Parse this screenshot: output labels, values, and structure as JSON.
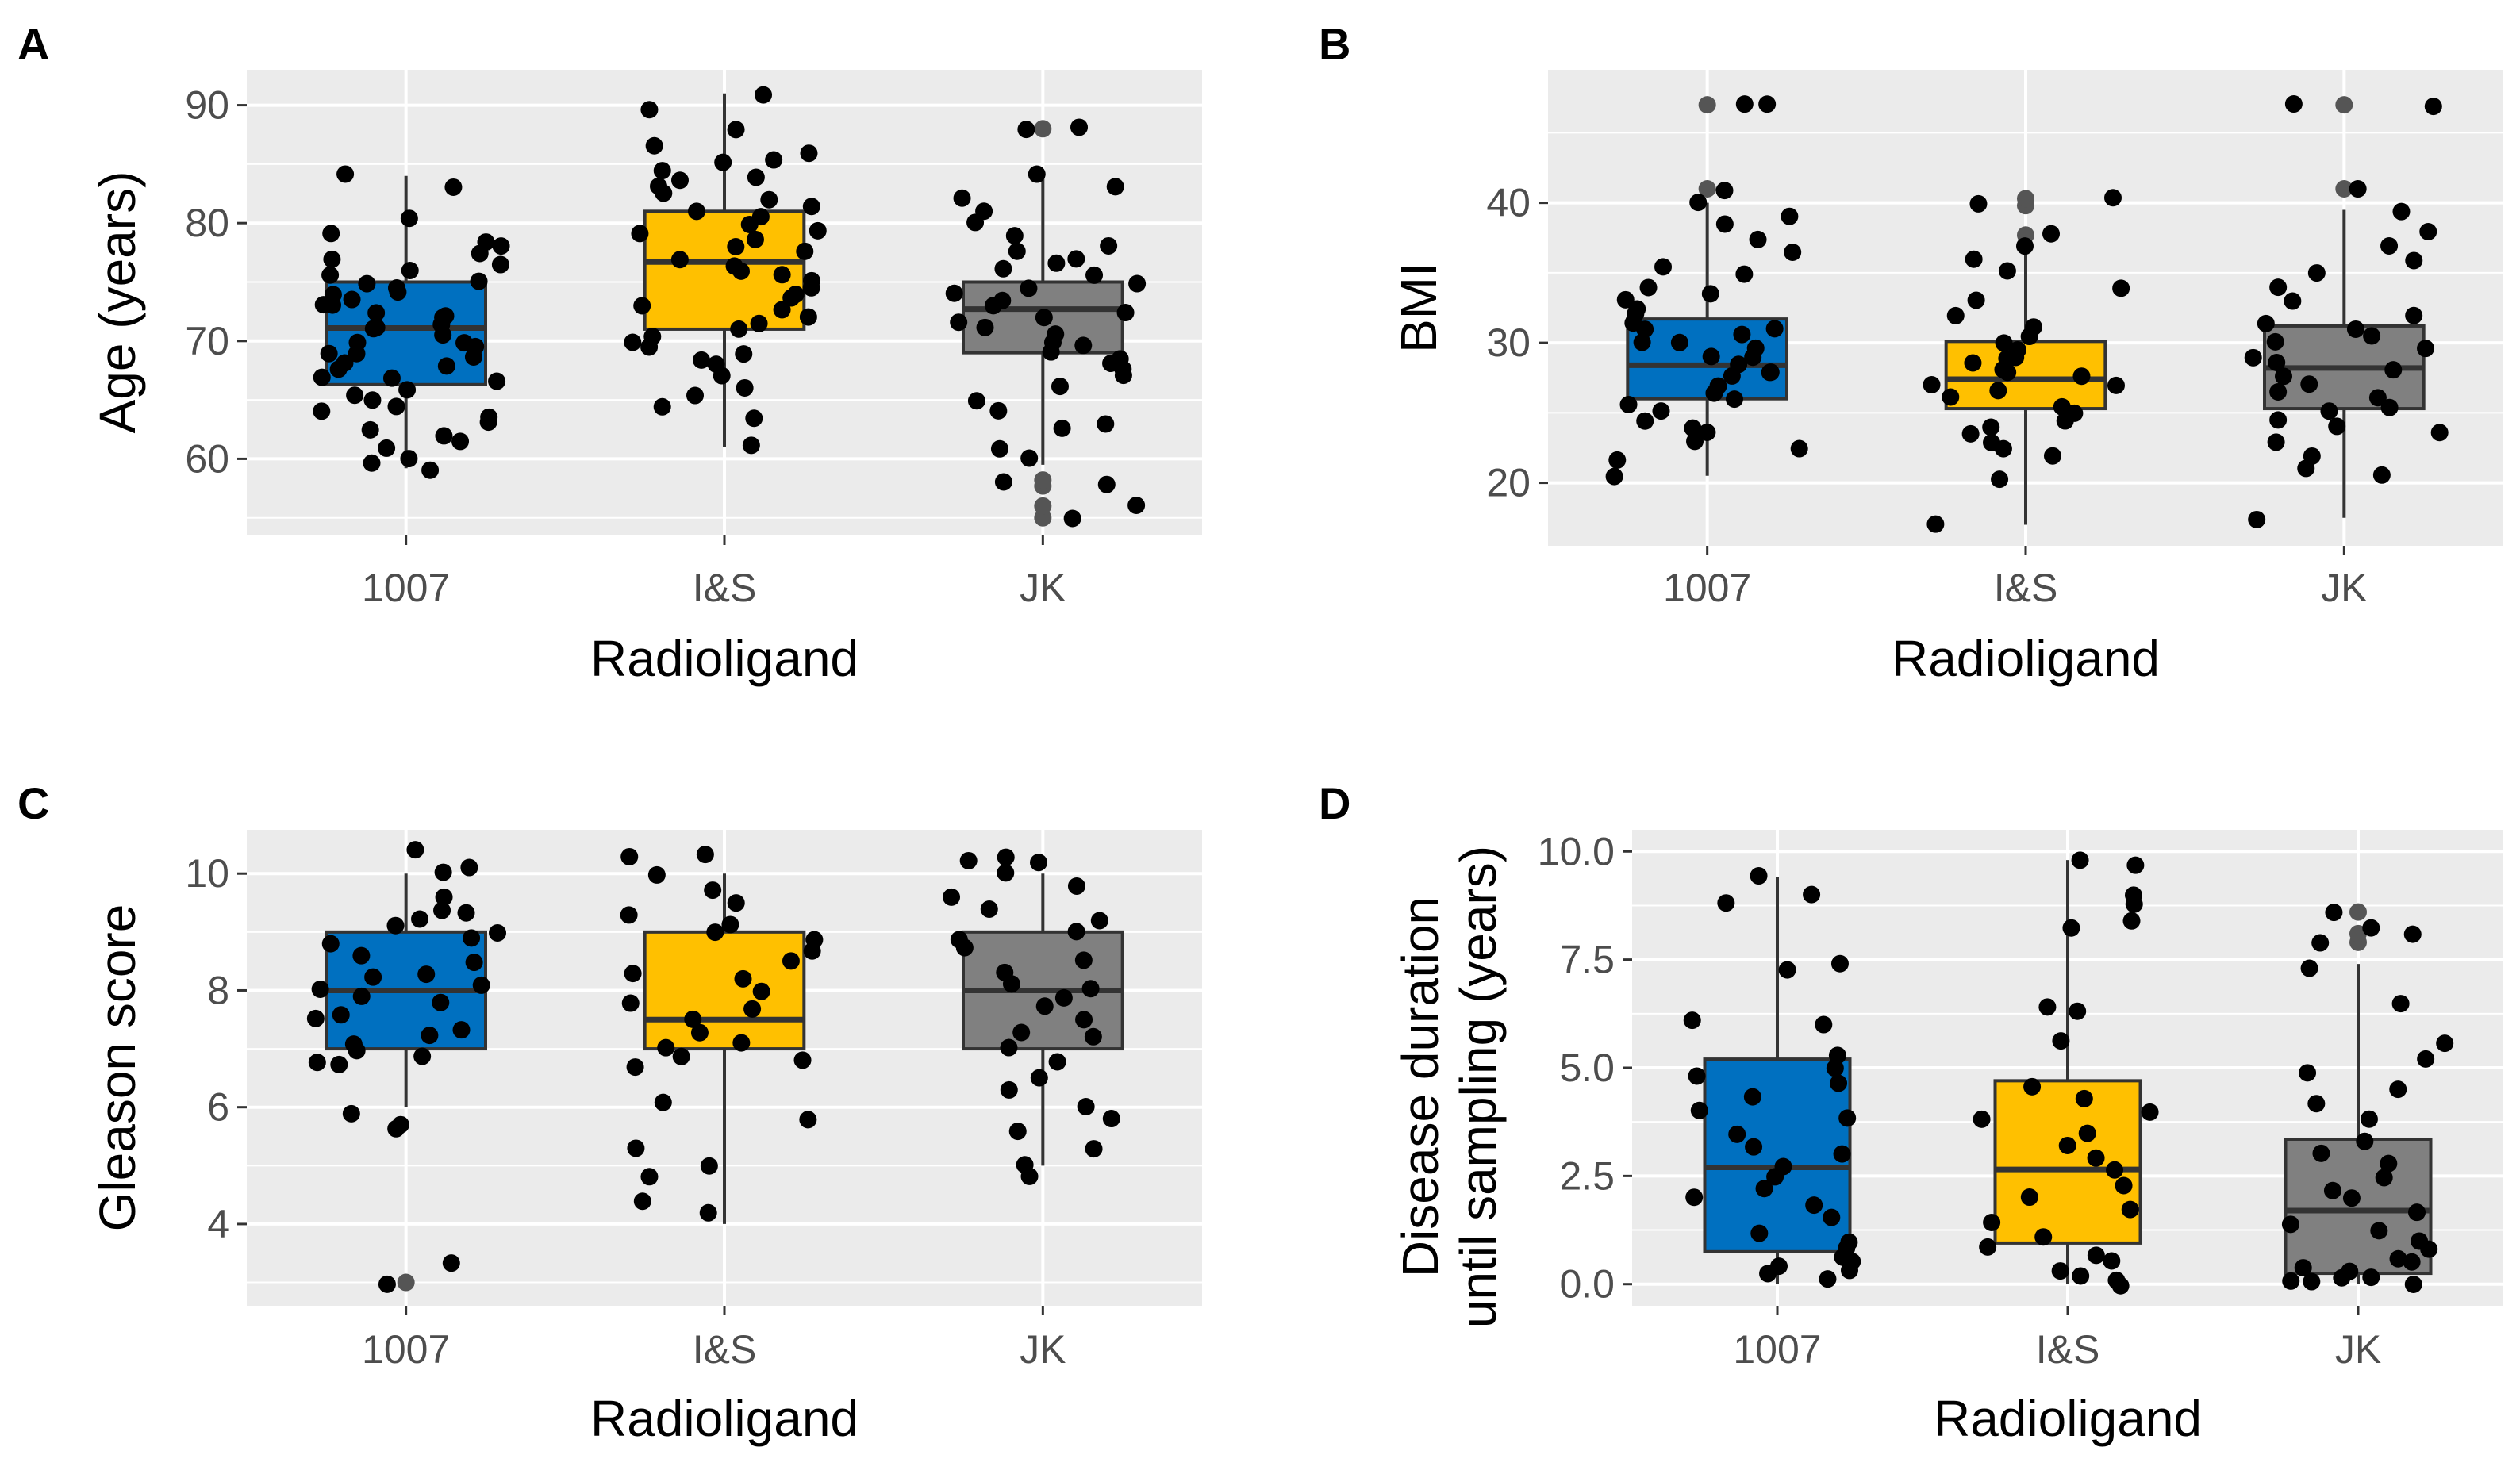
{
  "colors": {
    "panel_bg": "#ebebeb",
    "grid_major": "#ffffff",
    "group_1007": "#0070c0",
    "group_IS": "#ffc000",
    "group_JK": "#808080",
    "box_line": "#333333",
    "point": "#000000"
  },
  "chart_data": [
    {
      "panel": "A",
      "type": "boxplot",
      "xlabel": "Radioligand",
      "ylabel": "Age (years)",
      "categories": [
        "1007",
        "I&S",
        "JK"
      ],
      "ylim": [
        53.5,
        93
      ],
      "yticks": [
        60,
        70,
        80,
        90
      ],
      "ytick_labels": [
        "60",
        "70",
        "80",
        "90"
      ],
      "boxes": [
        {
          "group": "1007",
          "q1": 66.3,
          "median": 71.1,
          "q3": 75.0,
          "whisker_low": 59.2,
          "whisker_high": 84.0
        },
        {
          "group": "I&S",
          "q1": 71.0,
          "median": 76.7,
          "q3": 81.0,
          "whisker_low": 61.0,
          "whisker_high": 91.0
        },
        {
          "group": "JK",
          "q1": 69.0,
          "median": 72.7,
          "q3": 75.0,
          "whisker_low": 59.5,
          "whisker_high": 84.0
        }
      ],
      "outliers": [
        {
          "group": "JK",
          "values": [
            55.0,
            56.0,
            57.7,
            58.2,
            88.0
          ]
        }
      ],
      "points": [
        {
          "group": "1007",
          "values": [
            59,
            59.5,
            60,
            61,
            61.5,
            62,
            62.5,
            63,
            63.5,
            64,
            64.5,
            65,
            65.5,
            66,
            66.5,
            67,
            67,
            67.5,
            68,
            68,
            68.5,
            69,
            69,
            69.5,
            70,
            70,
            70.5,
            71,
            71,
            71.5,
            72,
            72,
            72.5,
            73,
            73,
            73.5,
            74,
            74,
            74.5,
            75,
            75,
            75.5,
            76,
            76.5,
            77,
            77.5,
            78,
            78.5,
            79,
            80.5,
            83,
            84
          ]
        },
        {
          "group": "I&S",
          "values": [
            61,
            63.5,
            64.5,
            65.5,
            66,
            67,
            68,
            68.5,
            69,
            69.5,
            70,
            70.5,
            71,
            71.5,
            72,
            72.5,
            73,
            73.5,
            74,
            74.5,
            75,
            75.5,
            76,
            76.5,
            77,
            77.5,
            78,
            78.5,
            79,
            79.5,
            80,
            80.5,
            81,
            81.5,
            82,
            82.5,
            83,
            83.5,
            84,
            84.5,
            85,
            85.5,
            86,
            86.5,
            88,
            89.5,
            91
          ]
        },
        {
          "group": "JK",
          "values": [
            55,
            56,
            57.7,
            58.2,
            60,
            61,
            62.5,
            63,
            64,
            65,
            66,
            67,
            67.5,
            68,
            68.5,
            69,
            69.5,
            70,
            70.5,
            71,
            71.5,
            72,
            72.5,
            73,
            73.5,
            74,
            74.5,
            75,
            75.5,
            76,
            76.5,
            77,
            77.5,
            78,
            79,
            80,
            81,
            82,
            83,
            84,
            88,
            88
          ]
        }
      ]
    },
    {
      "panel": "B",
      "type": "boxplot",
      "xlabel": "Radioligand",
      "ylabel": "BMI",
      "categories": [
        "1007",
        "I&S",
        "JK"
      ],
      "ylim": [
        15.5,
        49.5
      ],
      "yticks": [
        20,
        30,
        40
      ],
      "ytick_labels": [
        "20",
        "30",
        "40"
      ],
      "boxes": [
        {
          "group": "1007",
          "q1": 26.0,
          "median": 28.4,
          "q3": 31.7,
          "whisker_low": 20.5,
          "whisker_high": 40.0
        },
        {
          "group": "I&S",
          "q1": 25.3,
          "median": 27.4,
          "q3": 30.1,
          "whisker_low": 17.0,
          "whisker_high": 37.0
        },
        {
          "group": "JK",
          "q1": 25.3,
          "median": 28.2,
          "q3": 31.2,
          "whisker_low": 17.5,
          "whisker_high": 39.5
        }
      ],
      "outliers": [
        {
          "group": "1007",
          "values": [
            41.0,
            47.0
          ]
        },
        {
          "group": "I&S",
          "values": [
            37.7,
            39.8,
            40.3
          ]
        },
        {
          "group": "JK",
          "values": [
            41.0,
            47.0
          ]
        }
      ],
      "points": [
        {
          "group": "1007",
          "values": [
            20.5,
            21.5,
            22.5,
            23,
            23.5,
            24,
            24.5,
            25,
            25.5,
            26,
            26.5,
            27,
            27.5,
            28,
            28,
            28.5,
            29,
            29,
            29.5,
            30,
            30,
            30.5,
            31,
            31,
            31.5,
            32,
            32.5,
            33,
            33.5,
            34,
            35,
            35.5,
            36.5,
            37.5,
            38.5,
            39,
            40,
            41,
            47,
            47
          ]
        },
        {
          "group": "I&S",
          "values": [
            17,
            20.3,
            21.8,
            22.5,
            23,
            23.5,
            24,
            24.5,
            25,
            25.5,
            26,
            26.5,
            27,
            27,
            27.5,
            28,
            28,
            28.5,
            29,
            29,
            29.5,
            30,
            30.5,
            31,
            32,
            33,
            34,
            35,
            36,
            37,
            37.7,
            39.8,
            40.3
          ]
        },
        {
          "group": "JK",
          "values": [
            17.5,
            20.5,
            21,
            22,
            23,
            23.5,
            24,
            24.5,
            25,
            25.5,
            26,
            26.5,
            27,
            27.5,
            28,
            28.5,
            29,
            29.5,
            30,
            30.5,
            31,
            31.5,
            32,
            33,
            34,
            35,
            36,
            37,
            38,
            39.5,
            41,
            47,
            47
          ]
        }
      ]
    },
    {
      "panel": "C",
      "type": "boxplot",
      "xlabel": "Radioligand",
      "ylabel": "Gleason score",
      "categories": [
        "1007",
        "I&S",
        "JK"
      ],
      "ylim": [
        2.6,
        10.75
      ],
      "yticks": [
        4,
        6,
        8,
        10
      ],
      "ytick_labels": [
        "4",
        "6",
        "8",
        "10"
      ],
      "boxes": [
        {
          "group": "1007",
          "q1": 7.0,
          "median": 8.0,
          "q3": 9.0,
          "whisker_low": 6.0,
          "whisker_high": 10.0
        },
        {
          "group": "I&S",
          "q1": 7.0,
          "median": 7.5,
          "q3": 9.0,
          "whisker_low": 4.0,
          "whisker_high": 10.0
        },
        {
          "group": "JK",
          "q1": 7.0,
          "median": 8.0,
          "q3": 9.0,
          "whisker_low": 5.0,
          "whisker_high": 10.0
        }
      ],
      "outliers": [
        {
          "group": "1007",
          "values": [
            3.0
          ]
        }
      ],
      "points": [
        {
          "group": "1007",
          "values": [
            3.0,
            3.3,
            5.6,
            5.7,
            5.9,
            6.7,
            6.8,
            6.9,
            7.0,
            7.1,
            7.2,
            7.3,
            7.5,
            7.6,
            7.8,
            7.9,
            8.0,
            8.1,
            8.2,
            8.3,
            8.5,
            8.6,
            8.8,
            8.9,
            9.0,
            9.1,
            9.2,
            9.3,
            9.4,
            9.6,
            10.0,
            10.1,
            10.4
          ]
        },
        {
          "group": "I&S",
          "values": [
            4.2,
            4.4,
            4.8,
            5.0,
            5.3,
            5.8,
            6.1,
            6.7,
            6.8,
            6.9,
            7.0,
            7.1,
            7.3,
            7.5,
            7.7,
            7.8,
            8.0,
            8.2,
            8.3,
            8.5,
            8.7,
            8.9,
            9.0,
            9.1,
            9.3,
            9.5,
            9.7,
            10.0,
            10.3,
            10.3
          ]
        },
        {
          "group": "JK",
          "values": [
            4.8,
            5.0,
            5.3,
            5.6,
            5.8,
            6.0,
            6.3,
            6.5,
            6.8,
            7.0,
            7.2,
            7.3,
            7.5,
            7.7,
            7.9,
            8.0,
            8.1,
            8.3,
            8.5,
            8.7,
            8.9,
            9.0,
            9.2,
            9.4,
            9.6,
            9.8,
            10.0,
            10.2,
            10.2,
            10.3
          ]
        }
      ]
    },
    {
      "panel": "D",
      "type": "boxplot",
      "xlabel": "Radioligand",
      "ylabel_line1": "Disease duration",
      "ylabel_line2": "until sampling (years)",
      "categories": [
        "1007",
        "I&S",
        "JK"
      ],
      "ylim": [
        -0.5,
        10.5
      ],
      "yticks": [
        0,
        2.5,
        5,
        7.5,
        10
      ],
      "ytick_labels": [
        "0.0",
        "2.5",
        "5.0",
        "7.5",
        "10.0"
      ],
      "boxes": [
        {
          "group": "1007",
          "q1": 0.75,
          "median": 2.7,
          "q3": 5.2,
          "whisker_low": 0.0,
          "whisker_high": 9.4
        },
        {
          "group": "I&S",
          "q1": 0.95,
          "median": 2.65,
          "q3": 4.7,
          "whisker_low": 0.0,
          "whisker_high": 9.8
        },
        {
          "group": "JK",
          "q1": 0.25,
          "median": 1.7,
          "q3": 3.35,
          "whisker_low": 0.0,
          "whisker_high": 7.4
        }
      ],
      "outliers": [
        {
          "group": "JK",
          "values": [
            7.9,
            8.1,
            8.6
          ]
        }
      ],
      "points": [
        {
          "group": "1007",
          "values": [
            0.1,
            0.2,
            0.3,
            0.4,
            0.5,
            0.6,
            0.8,
            1.0,
            1.2,
            1.5,
            1.8,
            2.0,
            2.2,
            2.5,
            2.7,
            3.0,
            3.2,
            3.5,
            3.8,
            4.0,
            4.3,
            4.6,
            4.8,
            5.0,
            5.3,
            6.0,
            6.1,
            7.3,
            7.4,
            8.8,
            9.0,
            9.4
          ]
        },
        {
          "group": "I&S",
          "values": [
            0.0,
            0.1,
            0.2,
            0.3,
            0.5,
            0.7,
            0.9,
            1.1,
            1.4,
            1.7,
            2.0,
            2.3,
            2.6,
            2.9,
            3.2,
            3.5,
            3.8,
            4.0,
            4.3,
            4.6,
            5.6,
            6.3,
            6.4,
            8.2,
            8.4,
            8.8,
            9.0,
            9.7,
            9.8
          ]
        },
        {
          "group": "JK",
          "values": [
            0.0,
            0.05,
            0.1,
            0.15,
            0.2,
            0.3,
            0.4,
            0.5,
            0.6,
            0.8,
            1.0,
            1.2,
            1.4,
            1.7,
            2.0,
            2.2,
            2.5,
            2.8,
            3.0,
            3.3,
            3.8,
            4.2,
            4.5,
            4.9,
            5.2,
            5.6,
            6.5,
            7.3,
            7.9,
            8.1,
            8.2,
            8.6
          ]
        }
      ]
    }
  ]
}
